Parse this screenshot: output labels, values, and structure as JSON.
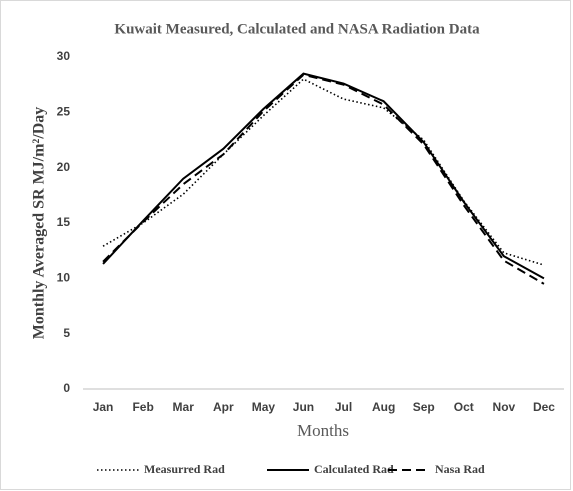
{
  "chart_data": {
    "type": "line",
    "title": "Kuwait Measured, Calculated and NASA Radiation Data",
    "xlabel": "Months",
    "ylabel": "Monthly Averaged SR MJ/m²/Day",
    "categories": [
      "Jan",
      "Feb",
      "Mar",
      "Apr",
      "May",
      "Jun",
      "Jul",
      "Aug",
      "Sep",
      "Oct",
      "Nov",
      "Dec"
    ],
    "series": [
      {
        "name": "Measurred Rad",
        "color": "#000000",
        "style": "dotted",
        "values": [
          12.9,
          15.0,
          17.6,
          21.2,
          24.7,
          28.0,
          26.2,
          25.4,
          22.5,
          17.0,
          12.3,
          11.2
        ]
      },
      {
        "name": "Calculated Rad",
        "color": "#000000",
        "style": "solid",
        "values": [
          11.3,
          15.2,
          19.0,
          21.7,
          25.3,
          28.5,
          27.6,
          26.0,
          22.3,
          16.9,
          12.0,
          10.0
        ]
      },
      {
        "name": "Nasa Rad",
        "color": "#000000",
        "style": "dashed",
        "values": [
          11.5,
          15.1,
          18.5,
          21.2,
          25.1,
          28.4,
          27.5,
          25.7,
          22.1,
          16.6,
          11.6,
          9.5
        ]
      }
    ],
    "ylim": [
      0,
      30
    ],
    "yticks": [
      0,
      5,
      10,
      15,
      20,
      25,
      30
    ],
    "grid": false,
    "legend": "bottom"
  }
}
